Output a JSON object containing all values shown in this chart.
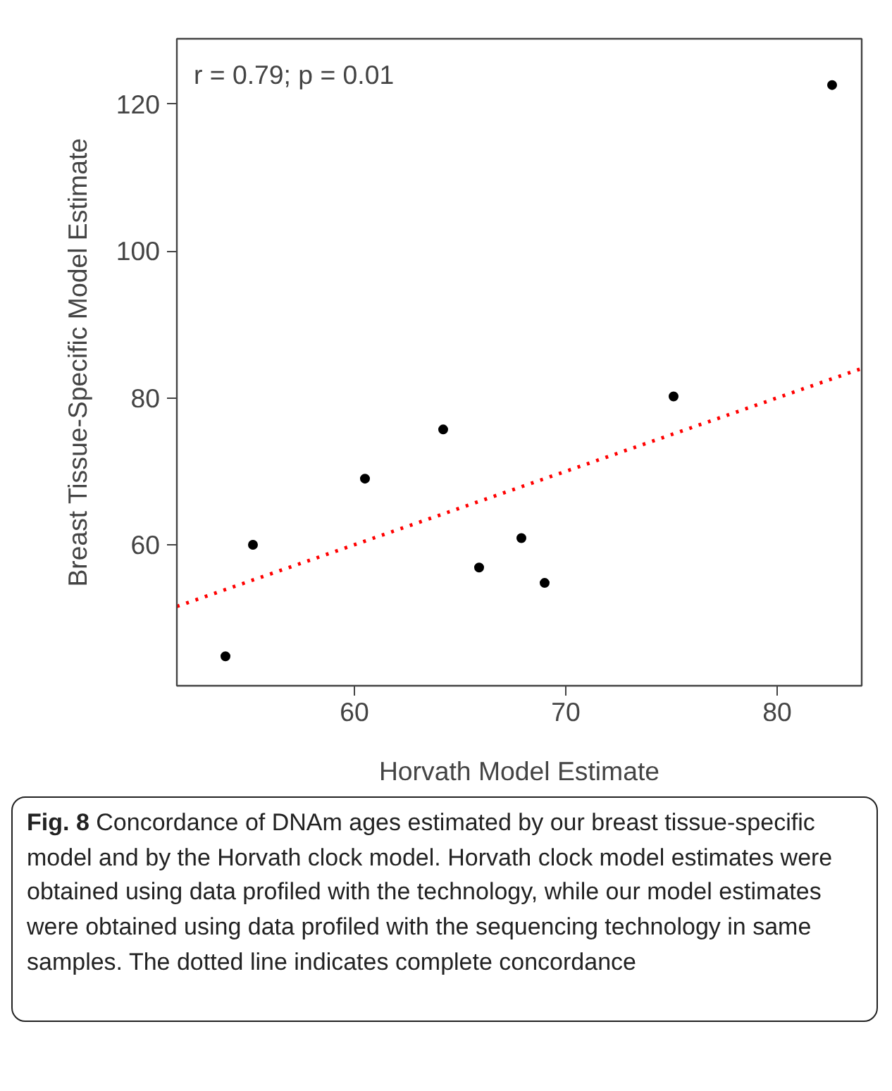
{
  "chart_data": {
    "type": "scatter",
    "xlabel": "Horvath Model Estimate",
    "ylabel": "Breast Tissue-Specific Model Estimate",
    "x": [
      53.9,
      55.2,
      60.5,
      64.2,
      65.9,
      67.9,
      69.0,
      75.1,
      82.6
    ],
    "series": [
      {
        "color": "#000000",
        "values": [
          44.8,
          60.0,
          69.0,
          75.7,
          56.9,
          60.9,
          54.8,
          80.2,
          122.6
        ]
      },
      {
        "type": "line",
        "color": "#ff0000",
        "line_style": "dotted",
        "marker": "none",
        "x": [
          51.6,
          84.0
        ],
        "values": [
          51.6,
          84.0
        ]
      }
    ],
    "marker": "circle",
    "xlim": [
      51.6,
      84.0
    ],
    "ylim": [
      40.8,
      128.9
    ],
    "xticks": [
      60,
      70,
      80
    ],
    "yticks": [
      60,
      80,
      100,
      120
    ],
    "grid": false,
    "annotations": [
      "r = 0.79; p = 0.01",
      "Fig. 8",
      "Concordance of DNAm ages estimated by our breast tissue-specific model and by the Horvath clock model. Horvath clock model estimates were obtained using data profiled with the technology, while our model estimates were obtained using data profiled with the sequencing technology in same samples. The dotted line indicates complete concordance"
    ]
  }
}
